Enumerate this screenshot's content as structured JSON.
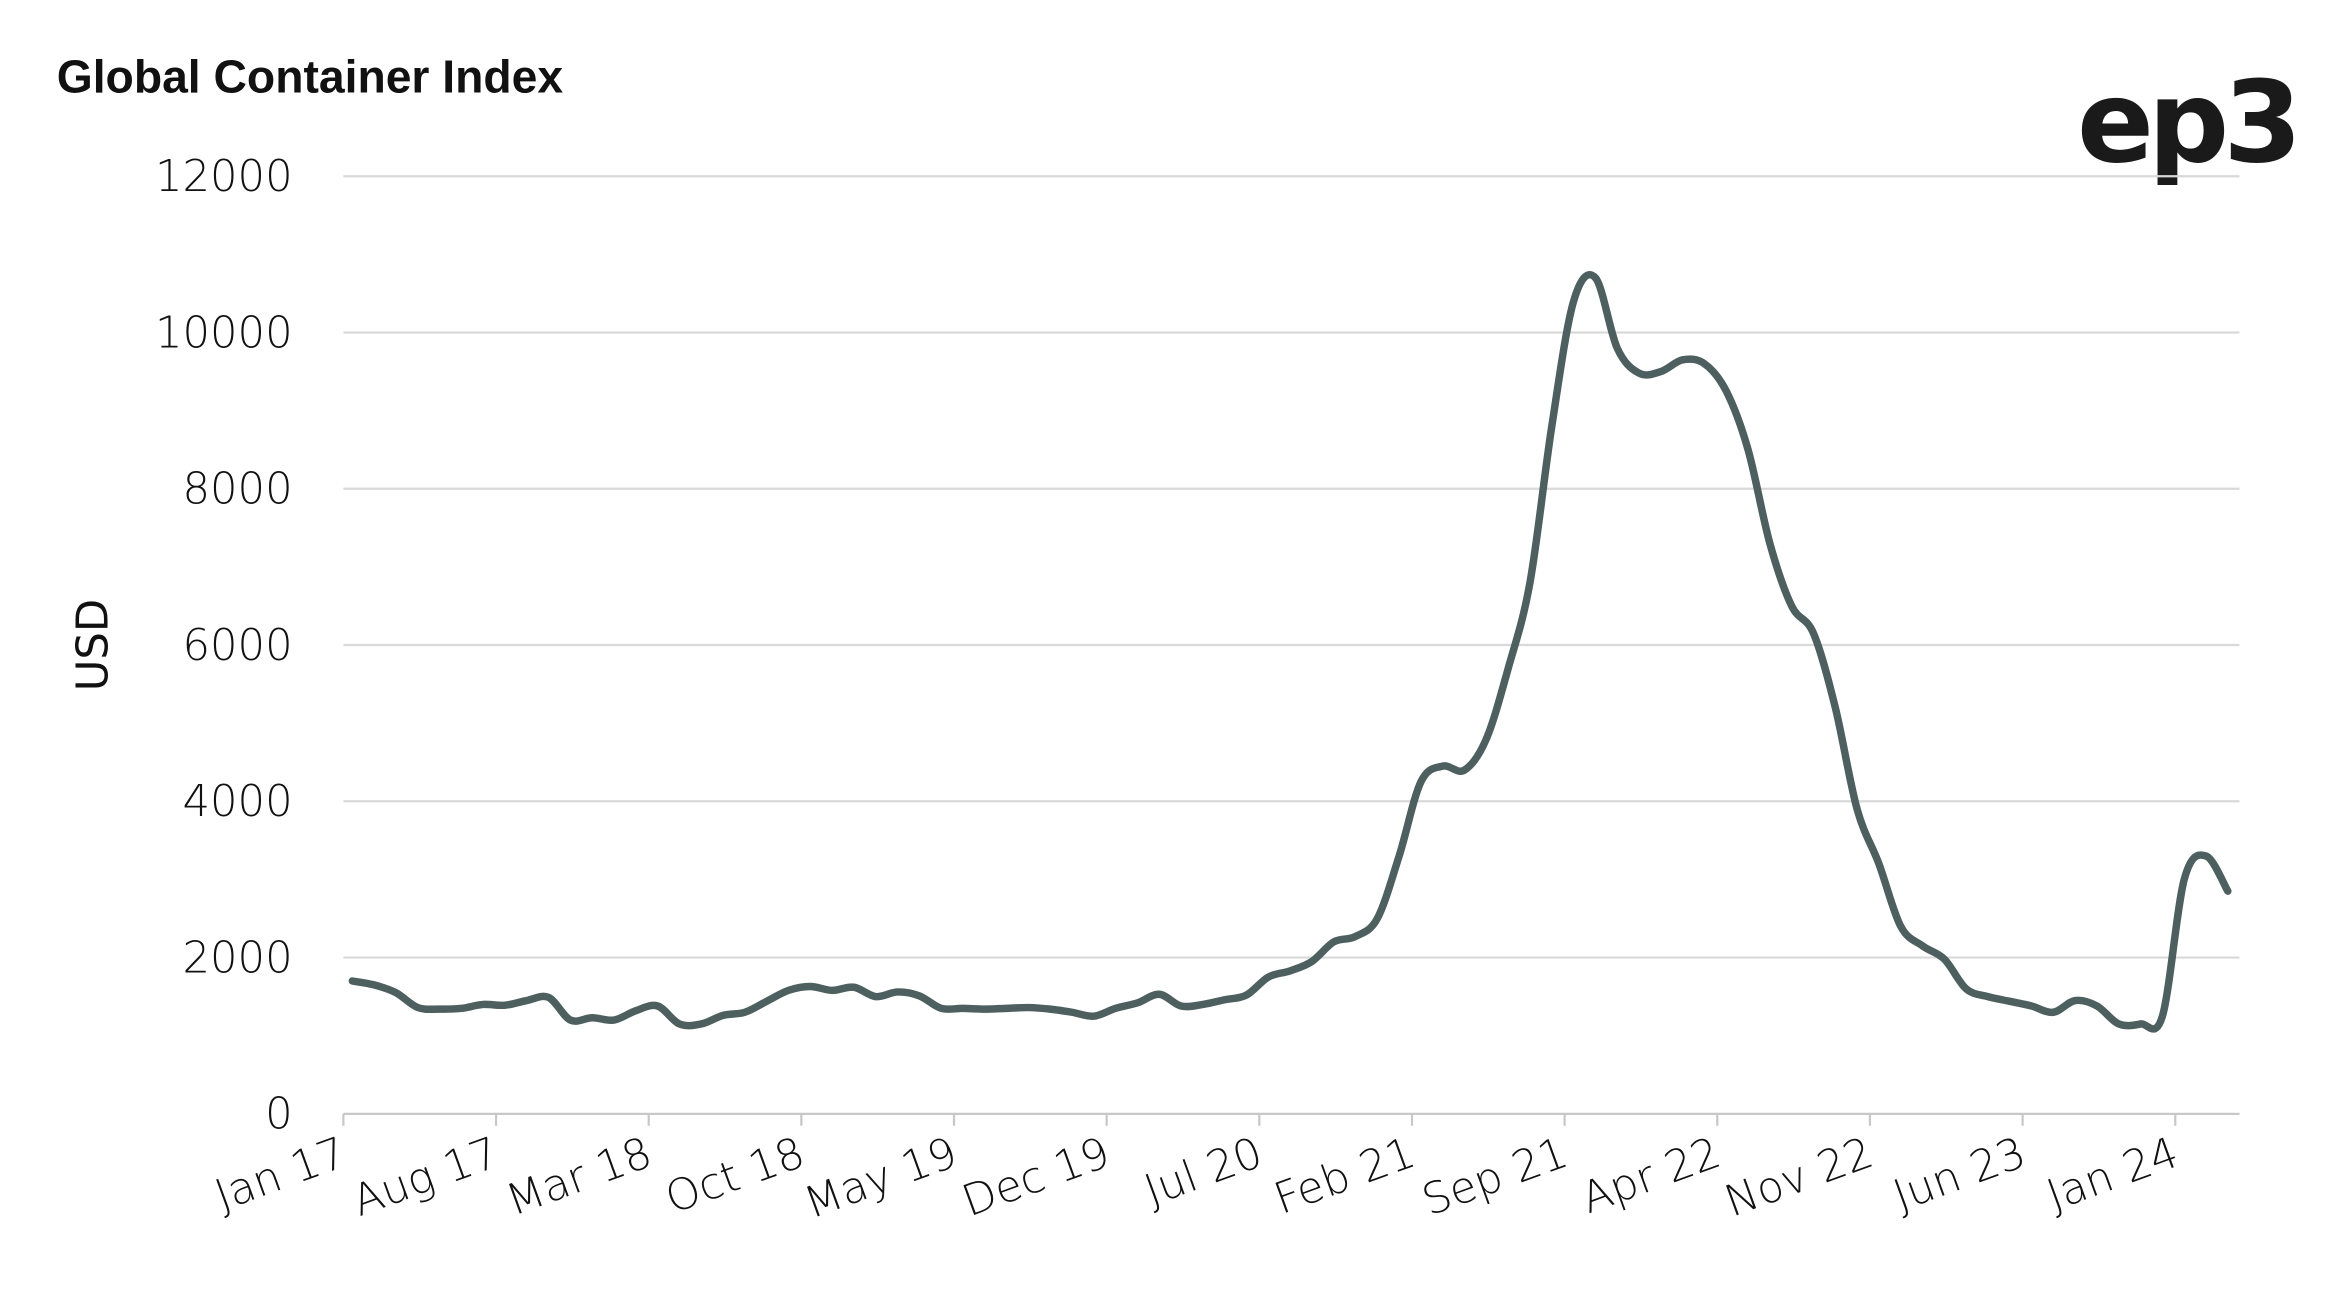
{
  "chart_data": {
    "type": "line",
    "title": "Global Container Index",
    "logo": "ep3",
    "xlabel": "",
    "ylabel": "USD",
    "ylim": [
      0,
      12000
    ],
    "yticks": [
      0,
      2000,
      4000,
      6000,
      8000,
      10000,
      12000
    ],
    "xticks": [
      "Jan 17",
      "Aug 17",
      "Mar 18",
      "Oct 18",
      "May 19",
      "Dec 19",
      "Jul 20",
      "Feb 21",
      "Sep 21",
      "Apr 22",
      "Nov 22",
      "Jun 23",
      "Jan 24"
    ],
    "grid": true,
    "line_color": "#4d5f5f",
    "series": [
      {
        "x": [
          "2017-01",
          "2017-02",
          "2017-03",
          "2017-04",
          "2017-05",
          "2017-06",
          "2017-07",
          "2017-08",
          "2017-09",
          "2017-10",
          "2017-11",
          "2017-12",
          "2018-01",
          "2018-02",
          "2018-03",
          "2018-04",
          "2018-05",
          "2018-06",
          "2018-07",
          "2018-08",
          "2018-09",
          "2018-10",
          "2018-11",
          "2018-12",
          "2019-01",
          "2019-02",
          "2019-03",
          "2019-04",
          "2019-05",
          "2019-06",
          "2019-07",
          "2019-08",
          "2019-09",
          "2019-10",
          "2019-11",
          "2019-12",
          "2020-01",
          "2020-02",
          "2020-03",
          "2020-04",
          "2020-05",
          "2020-06",
          "2020-07",
          "2020-08",
          "2020-09",
          "2020-10",
          "2020-11",
          "2020-12",
          "2021-01",
          "2021-02",
          "2021-03",
          "2021-04",
          "2021-05",
          "2021-06",
          "2021-07",
          "2021-08",
          "2021-09",
          "2021-10",
          "2021-11",
          "2021-12",
          "2022-01",
          "2022-02",
          "2022-03",
          "2022-04",
          "2022-05",
          "2022-06",
          "2022-07",
          "2022-08",
          "2022-09",
          "2022-10",
          "2022-11",
          "2022-12",
          "2023-01",
          "2023-02",
          "2023-03",
          "2023-04",
          "2023-05",
          "2023-06",
          "2023-07",
          "2023-08",
          "2023-09",
          "2023-10",
          "2023-11",
          "2023-12",
          "2024-01",
          "2024-02",
          "2024-03"
        ],
        "values": [
          1700,
          1650,
          1550,
          1360,
          1340,
          1350,
          1400,
          1390,
          1450,
          1490,
          1200,
          1230,
          1200,
          1320,
          1380,
          1150,
          1150,
          1260,
          1300,
          1440,
          1580,
          1630,
          1580,
          1620,
          1500,
          1560,
          1510,
          1350,
          1350,
          1340,
          1350,
          1360,
          1340,
          1300,
          1250,
          1350,
          1420,
          1530,
          1380,
          1400,
          1460,
          1520,
          1750,
          1830,
          1950,
          2200,
          2270,
          2500,
          3300,
          4250,
          4450,
          4400,
          4800,
          5700,
          6800,
          8800,
          10400,
          10700,
          9800,
          9480,
          9500,
          9650,
          9600,
          9250,
          8500,
          7300,
          6500,
          6150,
          5200,
          3900,
          3200,
          2400,
          2150,
          1980,
          1600,
          1500,
          1440,
          1380,
          1300,
          1450,
          1380,
          1150,
          1150,
          1250,
          3000,
          3300,
          2850
        ]
      }
    ]
  }
}
